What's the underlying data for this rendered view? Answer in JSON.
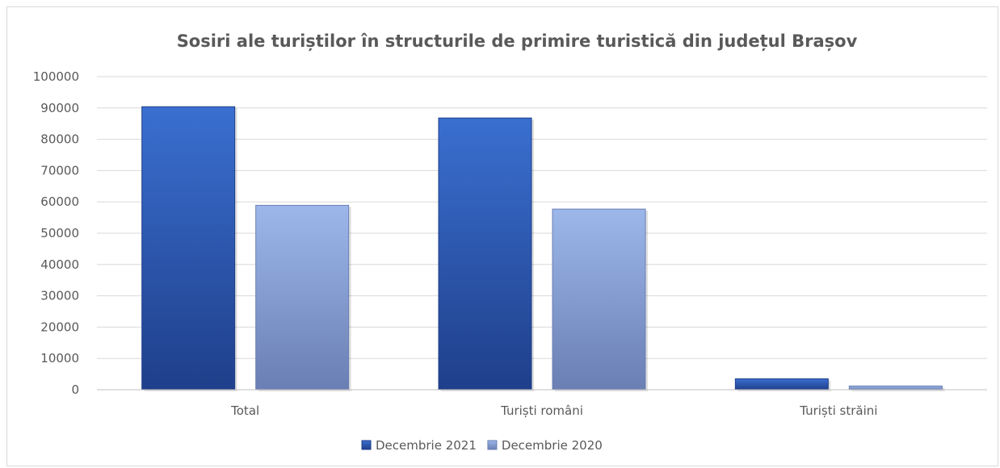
{
  "chart_data": {
    "type": "bar",
    "title": "Sosiri ale turiștilor în structurile de primire turistică din județul Brașov",
    "categories": [
      "Total",
      "Turiști români",
      "Turiști străini"
    ],
    "series": [
      {
        "name": "Decembrie 2021",
        "values": [
          90400,
          86800,
          3500
        ],
        "color": "#2F5597"
      },
      {
        "name": "Decembrie 2020",
        "values": [
          58900,
          57700,
          1200
        ],
        "color": "#8FAADC"
      }
    ],
    "ylim": [
      0,
      100000
    ],
    "yticks": [
      0,
      10000,
      20000,
      30000,
      40000,
      50000,
      60000,
      70000,
      80000,
      90000,
      100000
    ],
    "grid": true,
    "legend": "bottom",
    "xlabel": "",
    "ylabel": ""
  }
}
